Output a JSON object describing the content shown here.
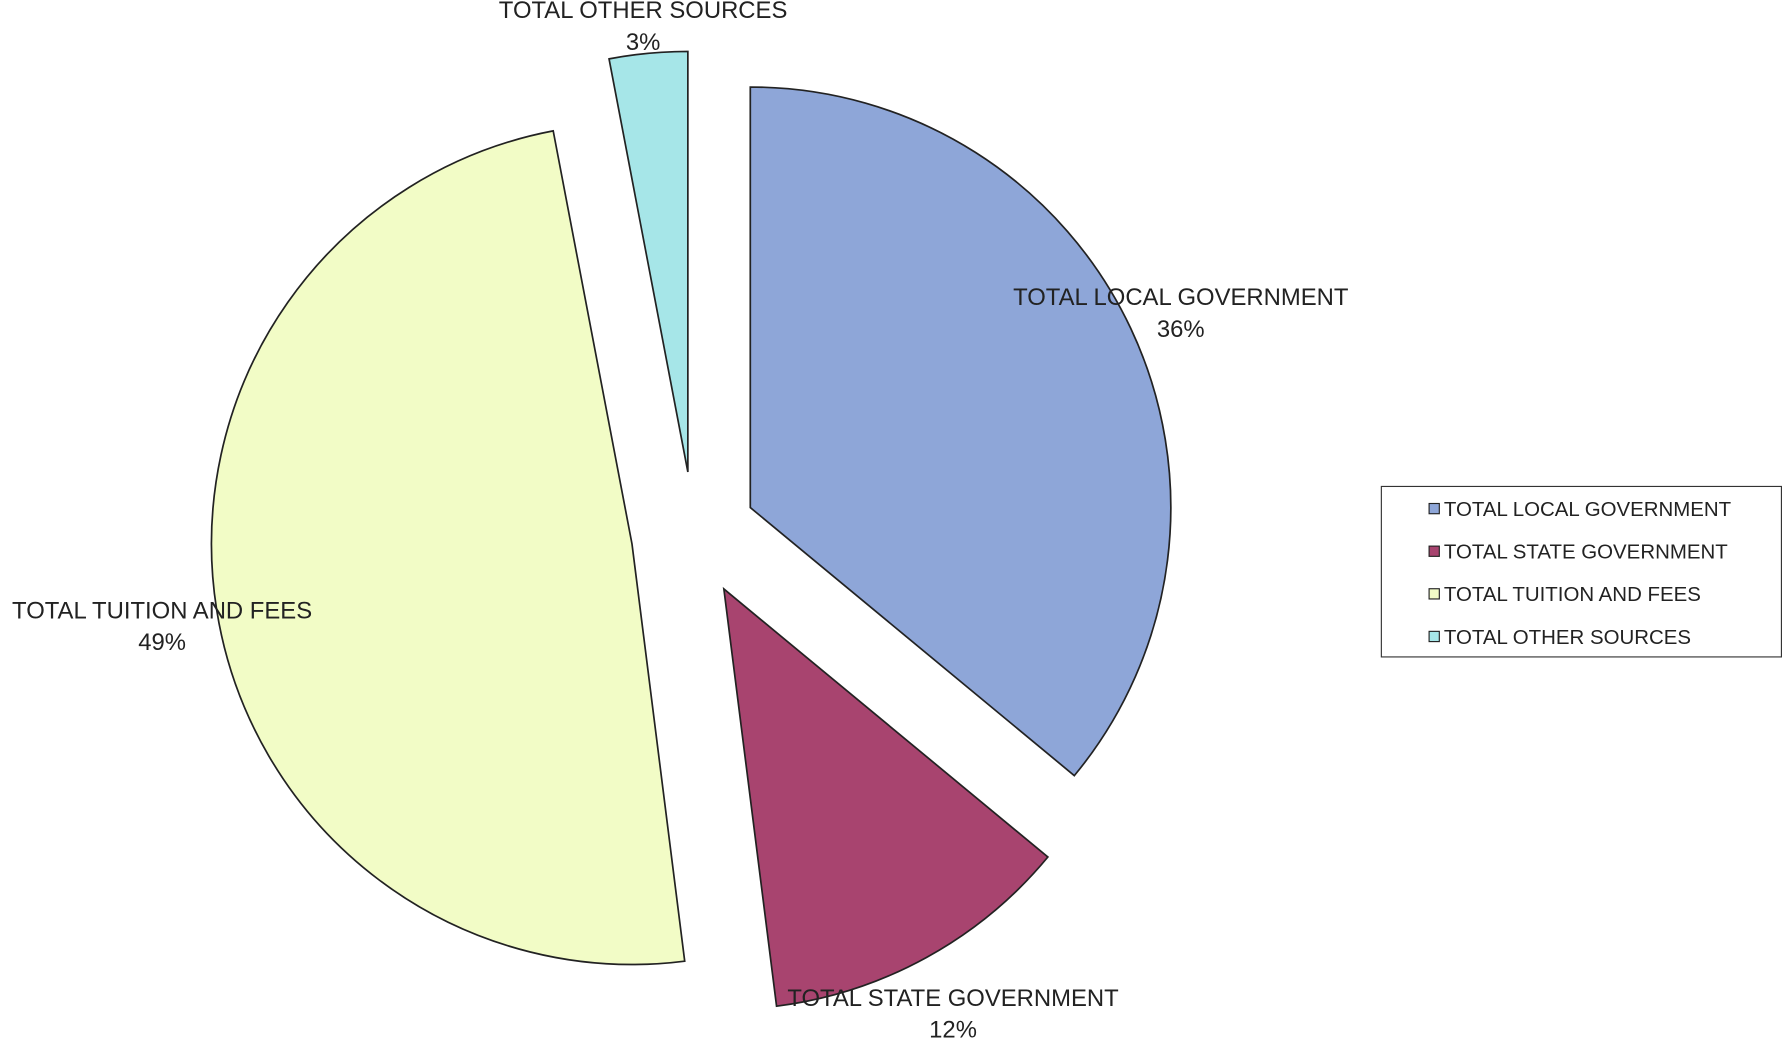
{
  "chart_data": {
    "type": "pie",
    "categories": [
      "TOTAL LOCAL GOVERNMENT",
      "TOTAL STATE GOVERNMENT",
      "TOTAL TUITION AND FEES",
      "TOTAL OTHER SOURCES"
    ],
    "values": [
      36,
      12,
      49,
      3
    ],
    "value_labels": [
      "36%",
      "12%",
      "49%",
      "3%"
    ],
    "colors": [
      "#8ea6d8",
      "#a8446f",
      "#f2fcc6",
      "#a6e6e8"
    ],
    "legend": "right"
  }
}
